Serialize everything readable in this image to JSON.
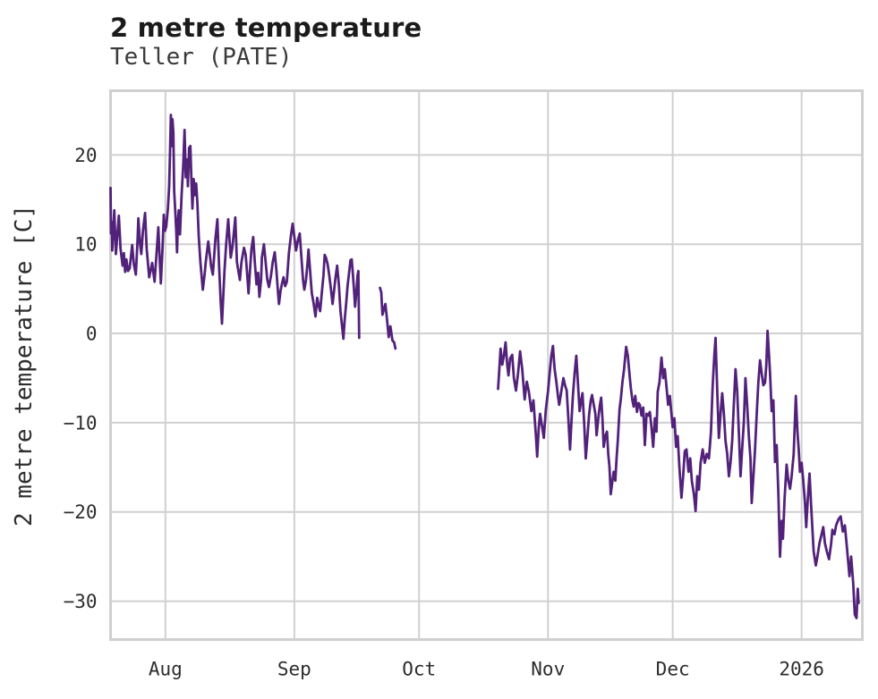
{
  "header": {
    "title": "2 metre temperature",
    "subtitle": "Teller (PATE)"
  },
  "axes": {
    "y_label": "2 metre temperature [C]"
  },
  "chart_data": {
    "type": "line",
    "title": "2 metre temperature",
    "subtitle": "Teller (PATE)",
    "ylabel": "2 metre temperature [C]",
    "series_name": "2 metre temperature",
    "unit": "C",
    "grid": true,
    "legend": false,
    "x_axis": {
      "unit": "days since 2025-08-01",
      "range": [
        -13.2,
        167.6
      ],
      "ticks": [
        {
          "label": "Aug",
          "day": 0
        },
        {
          "label": "Sep",
          "day": 31
        },
        {
          "label": "Oct",
          "day": 61
        },
        {
          "label": "Nov",
          "day": 92
        },
        {
          "label": "Dec",
          "day": 122
        },
        {
          "label": "2026",
          "day": 153
        }
      ]
    },
    "y_axis": {
      "unit": "°C",
      "range": [
        -34.3,
        27.2
      ],
      "ticks": [
        20,
        10,
        0,
        -10,
        -20,
        -30
      ]
    },
    "gaps_days": [
      [
        46.6,
        51.6
      ],
      [
        55.3,
        80.0
      ]
    ],
    "colors": {
      "line": "#52217a",
      "grid": "#d0d0d0",
      "title": "#1b1b1b",
      "subtitle": "#3a3a3a",
      "tick": "#2d2d2d"
    },
    "points": [
      [
        -13.2,
        16.3
      ],
      [
        -13.1,
        11.2
      ],
      [
        -12.9,
        12.5
      ],
      [
        -12.8,
        9.3
      ],
      [
        -12.3,
        13.8
      ],
      [
        -11.9,
        8.9
      ],
      [
        -11.2,
        13.2
      ],
      [
        -10.8,
        9.5
      ],
      [
        -10.3,
        7.6
      ],
      [
        -10.0,
        9.0
      ],
      [
        -9.7,
        6.9
      ],
      [
        -9.4,
        8.3
      ],
      [
        -9.0,
        7.0
      ],
      [
        -8.6,
        7.3
      ],
      [
        -8.0,
        9.9
      ],
      [
        -7.6,
        7.8
      ],
      [
        -7.1,
        6.6
      ],
      [
        -6.7,
        10.5
      ],
      [
        -6.5,
        12.9
      ],
      [
        -6.1,
        10.0
      ],
      [
        -5.8,
        8.9
      ],
      [
        -5.4,
        11.5
      ],
      [
        -4.9,
        13.5
      ],
      [
        -4.5,
        9.5
      ],
      [
        -3.9,
        6.3
      ],
      [
        -3.5,
        7.2
      ],
      [
        -3.2,
        7.9
      ],
      [
        -2.6,
        5.8
      ],
      [
        -2.2,
        8.5
      ],
      [
        -1.7,
        11.9
      ],
      [
        -1.3,
        7.5
      ],
      [
        -1.1,
        5.6
      ],
      [
        -0.7,
        9.5
      ],
      [
        -0.4,
        13.3
      ],
      [
        -0.1,
        11.5
      ],
      [
        0.2,
        12.0
      ],
      [
        0.6,
        14.0
      ],
      [
        0.9,
        16.5
      ],
      [
        1.1,
        20.0
      ],
      [
        1.3,
        24.5
      ],
      [
        1.5,
        21.0
      ],
      [
        1.7,
        24.0
      ],
      [
        1.9,
        22.5
      ],
      [
        2.1,
        16.0
      ],
      [
        2.4,
        13.4
      ],
      [
        2.6,
        11.5
      ],
      [
        2.8,
        9.1
      ],
      [
        3.0,
        12.5
      ],
      [
        3.2,
        13.8
      ],
      [
        3.5,
        11.1
      ],
      [
        3.9,
        15.5
      ],
      [
        4.3,
        19.0
      ],
      [
        4.6,
        22.8
      ],
      [
        4.9,
        17.5
      ],
      [
        5.2,
        19.5
      ],
      [
        5.4,
        16.5
      ],
      [
        5.7,
        20.8
      ],
      [
        6.0,
        21.0
      ],
      [
        6.3,
        16.5
      ],
      [
        6.5,
        14.0
      ],
      [
        6.8,
        17.3
      ],
      [
        7.1,
        15.5
      ],
      [
        7.4,
        16.8
      ],
      [
        7.7,
        14.5
      ],
      [
        8.0,
        11.0
      ],
      [
        8.4,
        8.0
      ],
      [
        9.0,
        4.9
      ],
      [
        9.4,
        6.5
      ],
      [
        9.7,
        8.0
      ],
      [
        10.3,
        10.3
      ],
      [
        10.7,
        8.8
      ],
      [
        11.0,
        7.5
      ],
      [
        11.4,
        6.6
      ],
      [
        12.0,
        10.5
      ],
      [
        12.5,
        12.8
      ],
      [
        12.9,
        7.5
      ],
      [
        13.3,
        3.5
      ],
      [
        13.6,
        1.1
      ],
      [
        13.9,
        4.0
      ],
      [
        14.2,
        7.0
      ],
      [
        14.6,
        10.0
      ],
      [
        15.1,
        12.8
      ],
      [
        15.5,
        10.0
      ],
      [
        15.7,
        8.5
      ],
      [
        16.1,
        9.6
      ],
      [
        16.5,
        11.5
      ],
      [
        16.8,
        13.0
      ],
      [
        17.2,
        8.0
      ],
      [
        17.9,
        6.0
      ],
      [
        18.3,
        8.0
      ],
      [
        18.9,
        9.6
      ],
      [
        19.3,
        8.8
      ],
      [
        19.6,
        7.0
      ],
      [
        20.0,
        4.5
      ],
      [
        20.4,
        7.5
      ],
      [
        20.7,
        9.5
      ],
      [
        21.1,
        10.8
      ],
      [
        21.5,
        8.0
      ],
      [
        21.9,
        5.5
      ],
      [
        22.3,
        6.8
      ],
      [
        22.6,
        4.1
      ],
      [
        23.0,
        6.0
      ],
      [
        23.2,
        8.5
      ],
      [
        23.7,
        10.0
      ],
      [
        24.1,
        8.0
      ],
      [
        24.5,
        6.0
      ],
      [
        24.9,
        5.2
      ],
      [
        25.4,
        6.5
      ],
      [
        25.8,
        8.0
      ],
      [
        26.3,
        9.1
      ],
      [
        26.7,
        7.0
      ],
      [
        27.1,
        4.5
      ],
      [
        27.3,
        3.3
      ],
      [
        27.7,
        4.8
      ],
      [
        28.0,
        5.5
      ],
      [
        28.4,
        6.3
      ],
      [
        28.8,
        5.3
      ],
      [
        29.2,
        5.8
      ],
      [
        29.7,
        9.0
      ],
      [
        30.2,
        11.0
      ],
      [
        30.6,
        12.3
      ],
      [
        31.0,
        10.8
      ],
      [
        31.4,
        9.3
      ],
      [
        31.9,
        10.5
      ],
      [
        32.3,
        11.2
      ],
      [
        32.7,
        8.5
      ],
      [
        33.1,
        6.0
      ],
      [
        33.4,
        4.9
      ],
      [
        33.8,
        6.0
      ],
      [
        34.2,
        8.0
      ],
      [
        34.4,
        9.4
      ],
      [
        34.8,
        7.0
      ],
      [
        35.2,
        4.5
      ],
      [
        35.6,
        3.5
      ],
      [
        36.1,
        1.9
      ],
      [
        36.5,
        4.0
      ],
      [
        36.9,
        3.0
      ],
      [
        37.2,
        2.5
      ],
      [
        37.6,
        4.5
      ],
      [
        38.0,
        6.5
      ],
      [
        38.3,
        8.8
      ],
      [
        38.6,
        8.5
      ],
      [
        39.0,
        7.8
      ],
      [
        39.4,
        6.5
      ],
      [
        39.8,
        5.0
      ],
      [
        40.2,
        3.3
      ],
      [
        40.6,
        5.0
      ],
      [
        40.9,
        6.2
      ],
      [
        41.3,
        7.6
      ],
      [
        41.7,
        5.5
      ],
      [
        42.1,
        2.5
      ],
      [
        42.8,
        -0.6
      ],
      [
        43.1,
        1.5
      ],
      [
        43.5,
        3.5
      ],
      [
        43.8,
        5.3
      ],
      [
        44.1,
        6.5
      ],
      [
        44.5,
        8.2
      ],
      [
        44.8,
        8.3
      ],
      [
        45.1,
        6.5
      ],
      [
        45.4,
        4.5
      ],
      [
        45.6,
        3.0
      ],
      [
        45.9,
        4.5
      ],
      [
        46.2,
        6.5
      ],
      [
        46.4,
        7.0
      ],
      [
        46.6,
        -0.5
      ],
      [
        51.6,
        5.1
      ],
      [
        51.9,
        4.6
      ],
      [
        52.2,
        2.1
      ],
      [
        52.6,
        2.8
      ],
      [
        52.9,
        3.3
      ],
      [
        53.3,
        1.5
      ],
      [
        53.7,
        -0.4
      ],
      [
        54.1,
        0.8
      ],
      [
        54.6,
        -0.8
      ],
      [
        55.0,
        -1.0
      ],
      [
        55.3,
        -1.7
      ],
      [
        80.0,
        -6.2
      ],
      [
        80.3,
        -4.0
      ],
      [
        80.6,
        -1.7
      ],
      [
        81.0,
        -3.5
      ],
      [
        81.4,
        -2.5
      ],
      [
        81.8,
        -1.0
      ],
      [
        82.2,
        -3.5
      ],
      [
        82.5,
        -4.7
      ],
      [
        82.9,
        -2.8
      ],
      [
        83.4,
        -2.4
      ],
      [
        83.8,
        -5.0
      ],
      [
        84.3,
        -6.4
      ],
      [
        84.8,
        -4.5
      ],
      [
        85.3,
        -2.0
      ],
      [
        85.8,
        -4.0
      ],
      [
        86.4,
        -7.4
      ],
      [
        86.9,
        -5.4
      ],
      [
        87.4,
        -6.5
      ],
      [
        88.0,
        -8.7
      ],
      [
        88.5,
        -7.5
      ],
      [
        89.1,
        -11.5
      ],
      [
        89.4,
        -13.8
      ],
      [
        89.8,
        -10.5
      ],
      [
        90.1,
        -9.0
      ],
      [
        90.6,
        -10.5
      ],
      [
        91.0,
        -11.7
      ],
      [
        91.5,
        -8.5
      ],
      [
        92.0,
        -6.5
      ],
      [
        92.4,
        -4.5
      ],
      [
        92.8,
        -2.5
      ],
      [
        93.2,
        -1.4
      ],
      [
        93.6,
        -4.0
      ],
      [
        94.0,
        -5.4
      ],
      [
        94.4,
        -7.0
      ],
      [
        94.7,
        -8.0
      ],
      [
        95.2,
        -6.5
      ],
      [
        95.7,
        -5.0
      ],
      [
        96.1,
        -5.8
      ],
      [
        96.5,
        -6.4
      ],
      [
        96.9,
        -9.5
      ],
      [
        97.3,
        -13.0
      ],
      [
        97.7,
        -9.5
      ],
      [
        98.0,
        -7.0
      ],
      [
        98.4,
        -4.5
      ],
      [
        98.8,
        -2.5
      ],
      [
        99.2,
        -5.5
      ],
      [
        99.6,
        -8.7
      ],
      [
        100.0,
        -7.5
      ],
      [
        100.3,
        -6.7
      ],
      [
        100.7,
        -10.0
      ],
      [
        101.1,
        -14.0
      ],
      [
        101.5,
        -11.5
      ],
      [
        101.9,
        -9.0
      ],
      [
        102.3,
        -7.5
      ],
      [
        102.6,
        -6.9
      ],
      [
        103.0,
        -8.0
      ],
      [
        103.4,
        -9.0
      ],
      [
        103.7,
        -11.4
      ],
      [
        104.1,
        -9.5
      ],
      [
        104.5,
        -8.0
      ],
      [
        104.8,
        -7.2
      ],
      [
        105.1,
        -9.5
      ],
      [
        105.4,
        -12.7
      ],
      [
        105.8,
        -11.5
      ],
      [
        106.2,
        -11.0
      ],
      [
        106.5,
        -13.5
      ],
      [
        106.8,
        -15.0
      ],
      [
        107.1,
        -18.0
      ],
      [
        107.5,
        -16.5
      ],
      [
        107.8,
        -15.5
      ],
      [
        108.2,
        -16.5
      ],
      [
        108.5,
        -14.0
      ],
      [
        108.8,
        -12.0
      ],
      [
        109.2,
        -8.5
      ],
      [
        109.5,
        -7.4
      ],
      [
        109.9,
        -5.5
      ],
      [
        110.3,
        -4.0
      ],
      [
        110.8,
        -1.5
      ],
      [
        111.2,
        -2.5
      ],
      [
        111.6,
        -4.5
      ],
      [
        111.9,
        -6.0
      ],
      [
        112.3,
        -7.5
      ],
      [
        112.6,
        -8.2
      ],
      [
        113.0,
        -7.0
      ],
      [
        113.4,
        -8.8
      ],
      [
        113.8,
        -7.8
      ],
      [
        114.1,
        -8.0
      ],
      [
        114.5,
        -9.2
      ],
      [
        114.9,
        -8.3
      ],
      [
        115.3,
        -12.5
      ],
      [
        115.7,
        -9.0
      ],
      [
        116.1,
        -9.2
      ],
      [
        116.5,
        -8.8
      ],
      [
        116.9,
        -10.5
      ],
      [
        117.3,
        -12.7
      ],
      [
        117.7,
        -9.5
      ],
      [
        118.1,
        -11.0
      ],
      [
        118.4,
        -6.5
      ],
      [
        118.8,
        -5.5
      ],
      [
        119.3,
        -2.7
      ],
      [
        119.7,
        -5.0
      ],
      [
        120.1,
        -4.0
      ],
      [
        120.5,
        -6.0
      ],
      [
        120.9,
        -8.0
      ],
      [
        121.3,
        -7.0
      ],
      [
        121.7,
        -9.0
      ],
      [
        122.0,
        -10.5
      ],
      [
        122.4,
        -9.5
      ],
      [
        122.8,
        -12.7
      ],
      [
        123.2,
        -11.5
      ],
      [
        123.6,
        -15.0
      ],
      [
        124.1,
        -18.4
      ],
      [
        124.5,
        -16.0
      ],
      [
        124.9,
        -13.2
      ],
      [
        125.3,
        -13.0
      ],
      [
        125.8,
        -15.5
      ],
      [
        126.2,
        -14.0
      ],
      [
        126.6,
        -16.5
      ],
      [
        127.1,
        -18.0
      ],
      [
        127.5,
        -19.9
      ],
      [
        127.9,
        -16.0
      ],
      [
        128.3,
        -17.5
      ],
      [
        128.7,
        -14.5
      ],
      [
        129.2,
        -13.0
      ],
      [
        129.7,
        -14.5
      ],
      [
        130.2,
        -13.5
      ],
      [
        130.7,
        -14.0
      ],
      [
        131.2,
        -11.0
      ],
      [
        131.6,
        -6.0
      ],
      [
        132.0,
        -2.5
      ],
      [
        132.3,
        -0.5
      ],
      [
        132.7,
        -6.5
      ],
      [
        133.1,
        -11.7
      ],
      [
        133.5,
        -9.0
      ],
      [
        133.9,
        -6.7
      ],
      [
        134.3,
        -9.0
      ],
      [
        134.7,
        -12.0
      ],
      [
        135.1,
        -13.5
      ],
      [
        135.5,
        -16.0
      ],
      [
        135.9,
        -14.5
      ],
      [
        136.3,
        -12.0
      ],
      [
        136.7,
        -8.0
      ],
      [
        137.1,
        -4.0
      ],
      [
        137.5,
        -6.5
      ],
      [
        137.9,
        -11.0
      ],
      [
        138.3,
        -16.0
      ],
      [
        138.7,
        -13.0
      ],
      [
        139.1,
        -10.0
      ],
      [
        139.5,
        -5.0
      ],
      [
        139.9,
        -8.0
      ],
      [
        140.3,
        -11.5
      ],
      [
        140.7,
        -14.0
      ],
      [
        141.0,
        -19.0
      ],
      [
        141.4,
        -16.0
      ],
      [
        141.8,
        -13.0
      ],
      [
        142.2,
        -9.0
      ],
      [
        142.6,
        -5.5
      ],
      [
        143.0,
        -3.0
      ],
      [
        143.4,
        -4.5
      ],
      [
        143.8,
        -5.8
      ],
      [
        144.2,
        -5.5
      ],
      [
        144.5,
        -3.5
      ],
      [
        144.8,
        0.3
      ],
      [
        145.1,
        -2.0
      ],
      [
        145.4,
        -4.5
      ],
      [
        145.8,
        -8.7
      ],
      [
        146.2,
        -7.5
      ],
      [
        146.6,
        -14.4
      ],
      [
        147.0,
        -12.5
      ],
      [
        147.4,
        -18.0
      ],
      [
        147.8,
        -25.0
      ],
      [
        148.2,
        -21.0
      ],
      [
        148.5,
        -23.0
      ],
      [
        148.9,
        -18.5
      ],
      [
        149.4,
        -14.7
      ],
      [
        149.8,
        -16.5
      ],
      [
        150.2,
        -17.4
      ],
      [
        150.6,
        -16.0
      ],
      [
        151.1,
        -13.5
      ],
      [
        151.6,
        -7.0
      ],
      [
        152.0,
        -11.0
      ],
      [
        152.3,
        -13.0
      ],
      [
        152.6,
        -15.5
      ],
      [
        153.0,
        -14.5
      ],
      [
        153.4,
        -16.5
      ],
      [
        153.8,
        -19.0
      ],
      [
        154.1,
        -21.7
      ],
      [
        154.5,
        -18.5
      ],
      [
        154.9,
        -15.7
      ],
      [
        155.3,
        -19.5
      ],
      [
        155.9,
        -24.4
      ],
      [
        156.4,
        -26.0
      ],
      [
        156.8,
        -25.0
      ],
      [
        157.3,
        -23.5
      ],
      [
        157.8,
        -22.5
      ],
      [
        158.2,
        -21.7
      ],
      [
        158.6,
        -23.5
      ],
      [
        159.1,
        -24.5
      ],
      [
        159.6,
        -25.3
      ],
      [
        160.1,
        -23.5
      ],
      [
        160.4,
        -22.0
      ],
      [
        160.9,
        -22.5
      ],
      [
        161.3,
        -21.5
      ],
      [
        161.9,
        -20.8
      ],
      [
        162.4,
        -20.5
      ],
      [
        162.9,
        -22.2
      ],
      [
        163.4,
        -21.5
      ],
      [
        163.9,
        -24.0
      ],
      [
        164.5,
        -27.2
      ],
      [
        164.9,
        -25.0
      ],
      [
        165.4,
        -28.0
      ],
      [
        165.8,
        -31.5
      ],
      [
        166.2,
        -31.9
      ],
      [
        166.5,
        -28.6
      ],
      [
        166.7,
        -30.2
      ]
    ]
  }
}
